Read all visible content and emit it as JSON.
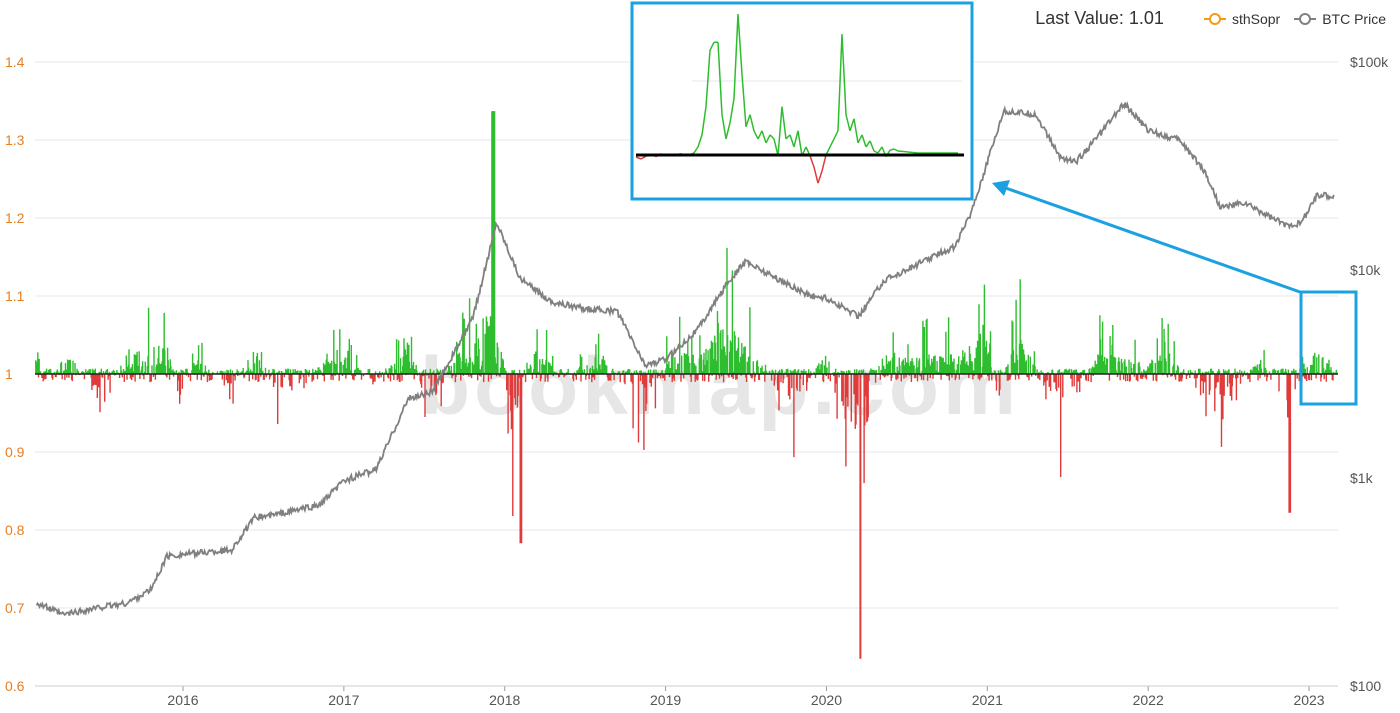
{
  "legend": {
    "last_value": "Last Value: 1.01",
    "items": [
      {
        "label": "sthSopr",
        "color": "#f39c12"
      },
      {
        "label": "BTC Price",
        "color": "#808080"
      }
    ]
  },
  "watermark": "bookmap.com",
  "chart_data": {
    "type": "line",
    "title": "",
    "left_axis": {
      "label": "",
      "ticks": [
        "0.6",
        "0.7",
        "0.8",
        "0.9",
        "1",
        "1.1",
        "1.2",
        "1.3",
        "1.4"
      ],
      "range": [
        0.6,
        1.4
      ],
      "color": "#e67e22"
    },
    "right_axis": {
      "label": "",
      "scale": "log",
      "ticks": [
        "$100",
        "$1k",
        "$10k",
        "$100k"
      ],
      "range": [
        100,
        100000
      ]
    },
    "x_axis": {
      "ticks": [
        "2016",
        "2017",
        "2018",
        "2019",
        "2020",
        "2021",
        "2022",
        "2023"
      ],
      "range": [
        "2015-02",
        "2023-03"
      ]
    },
    "baseline": 1,
    "colors": {
      "above": "#2ebd2e",
      "below": "#e03a3a",
      "btc": "#808080",
      "grid": "#e6e6f0",
      "highlight": "#1ba1e2"
    },
    "series": [
      {
        "name": "sthSopr",
        "x": [
          2015.1,
          2015.15,
          2015.3,
          2015.5,
          2015.7,
          2015.9,
          2016.0,
          2016.05,
          2016.3,
          2016.45,
          2016.6,
          2016.85,
          2017.0,
          2017.2,
          2017.4,
          2017.55,
          2017.7,
          2017.8,
          2017.93,
          2017.97,
          2018.05,
          2018.1,
          2018.2,
          2018.35,
          2018.6,
          2018.88,
          2019.0,
          2019.25,
          2019.4,
          2019.45,
          2019.55,
          2019.8,
          2020.0,
          2020.2,
          2020.35,
          2020.5,
          2020.7,
          2020.9,
          2021.0,
          2021.05,
          2021.2,
          2021.45,
          2021.7,
          2021.9,
          2022.1,
          2022.35,
          2022.45,
          2022.7,
          2022.87,
          2022.95,
          2023.05,
          2023.15
        ],
        "y": [
          1.09,
          0.93,
          1.07,
          0.92,
          1.08,
          1.12,
          0.9,
          1.08,
          0.95,
          1.1,
          0.9,
          1.03,
          1.08,
          0.96,
          1.13,
          0.85,
          1.12,
          1.1,
          1.34,
          1.15,
          0.79,
          0.95,
          1.12,
          0.98,
          1.08,
          0.85,
          1.06,
          1.1,
          1.21,
          1.14,
          1.07,
          0.88,
          1.09,
          0.64,
          1.09,
          1.06,
          1.08,
          1.08,
          1.22,
          0.93,
          1.15,
          0.86,
          1.08,
          1.05,
          1.08,
          0.94,
          0.9,
          1.06,
          0.83,
          1.04,
          1.1,
          1.01
        ]
      },
      {
        "name": "BTC Price",
        "x": [
          2015.1,
          2015.25,
          2015.5,
          2015.65,
          2015.8,
          2015.9,
          2016.0,
          2016.3,
          2016.45,
          2016.55,
          2016.85,
          2017.0,
          2017.2,
          2017.4,
          2017.55,
          2017.7,
          2017.8,
          2017.95,
          2018.1,
          2018.3,
          2018.5,
          2018.7,
          2018.87,
          2019.0,
          2019.2,
          2019.4,
          2019.5,
          2019.7,
          2019.9,
          2020.0,
          2020.2,
          2020.35,
          2020.6,
          2020.8,
          2020.9,
          2021.0,
          2021.1,
          2021.3,
          2021.45,
          2021.55,
          2021.7,
          2021.85,
          2022.0,
          2022.2,
          2022.35,
          2022.45,
          2022.6,
          2022.85,
          2022.95,
          2023.05,
          2023.15
        ],
        "y": [
          250,
          220,
          240,
          250,
          290,
          420,
          430,
          450,
          650,
          660,
          740,
          970,
          1100,
          2400,
          2600,
          4200,
          5800,
          17000,
          9000,
          7000,
          6500,
          6300,
          3500,
          3700,
          5200,
          9000,
          11000,
          9000,
          7500,
          7300,
          6000,
          8800,
          11000,
          13000,
          19000,
          33000,
          58000,
          56000,
          35000,
          33000,
          45000,
          63000,
          47000,
          42000,
          30000,
          20000,
          21000,
          16500,
          16800,
          23000,
          22500
        ]
      }
    ],
    "inset": {
      "description_series": "sthSopr zoom",
      "x": [
        0,
        5,
        10,
        15,
        20,
        25,
        30,
        35,
        40,
        45,
        50,
        55,
        58,
        62,
        66,
        70,
        74,
        78,
        82,
        86,
        90,
        94,
        98,
        102,
        106,
        110,
        114,
        118,
        122,
        126,
        130,
        134,
        138,
        142,
        146,
        150,
        154,
        158,
        162,
        166,
        170,
        174,
        178,
        182,
        186,
        190,
        194,
        198,
        202,
        206,
        210,
        214,
        218,
        222,
        226,
        230,
        234,
        238,
        242,
        246,
        250,
        254,
        258,
        262,
        266,
        270,
        274,
        278,
        282,
        286,
        290,
        294,
        298,
        302,
        306,
        310,
        314,
        318,
        322
      ],
      "y": [
        0.995,
        0.99,
        0.997,
        1.002,
        0.996,
        1.003,
        0.998,
        1.002,
        1.001,
        1.003,
        1.0,
        1.002,
        1.005,
        1.02,
        1.05,
        1.12,
        1.26,
        1.28,
        1.28,
        1.1,
        1.04,
        1.08,
        1.14,
        1.35,
        1.2,
        1.07,
        1.1,
        1.06,
        1.04,
        1.06,
        1.03,
        1.05,
        1.04,
        0.999,
        1.12,
        1.04,
        1.05,
        1.02,
        1.06,
        0.998,
        1.02,
        0.998,
        0.97,
        0.93,
        0.96,
        1.0,
        1.02,
        1.04,
        1.06,
        1.3,
        1.1,
        1.06,
        1.09,
        1.03,
        1.05,
        1.02,
        1.035,
        1.01,
        1.005,
        1.02,
        0.996,
        1.012,
        1.015,
        1.01,
        1.009,
        1.008,
        1.007,
        1.006,
        1.005,
        1.005,
        1.005,
        1.005,
        1.005,
        1.005,
        1.005,
        1.005,
        1.005,
        1.005,
        1.005
      ],
      "baseline": 1
    }
  }
}
